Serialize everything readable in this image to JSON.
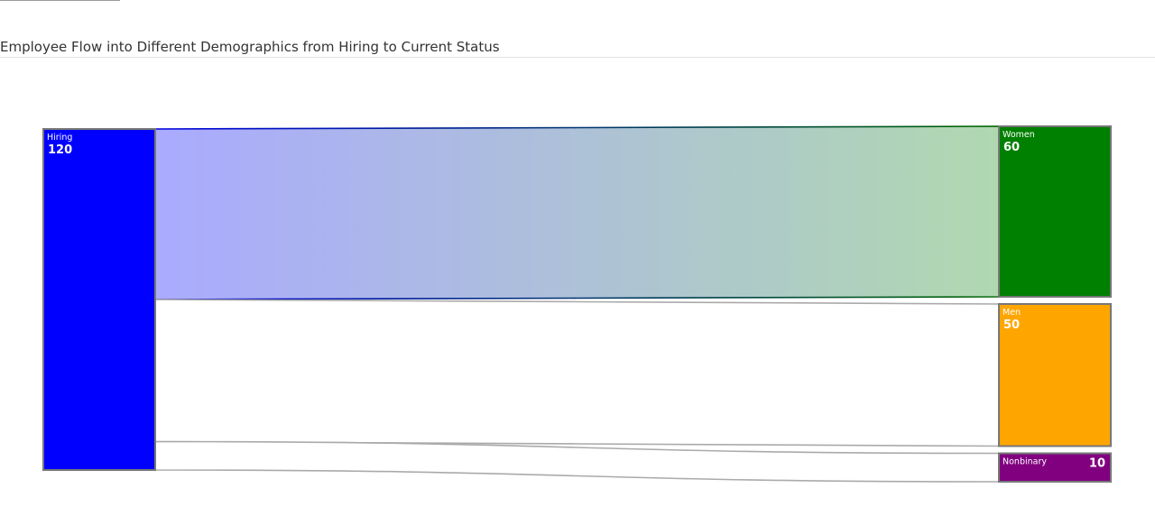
{
  "title": "Employee Flow into Different Demographics from Hiring to Current Status",
  "chart_data": {
    "type": "sankey",
    "title": "Employee Flow into Different Demographics from Hiring to Current Status",
    "nodes": [
      {
        "id": "hiring",
        "name": "Hiring",
        "value": 120,
        "color": "#0000ff",
        "column": 0
      },
      {
        "id": "women",
        "name": "Women",
        "value": 60,
        "color": "#008000",
        "column": 1
      },
      {
        "id": "men",
        "name": "Men",
        "value": 50,
        "color": "#ffa500",
        "column": 1
      },
      {
        "id": "nonbinary",
        "name": "Nonbinary",
        "value": 10,
        "color": "#800080",
        "column": 1
      }
    ],
    "links": [
      {
        "source": "hiring",
        "target": "women",
        "value": 60,
        "highlighted": true
      },
      {
        "source": "hiring",
        "target": "men",
        "value": 50,
        "highlighted": false
      },
      {
        "source": "hiring",
        "target": "nonbinary",
        "value": 10,
        "highlighted": false
      }
    ]
  }
}
